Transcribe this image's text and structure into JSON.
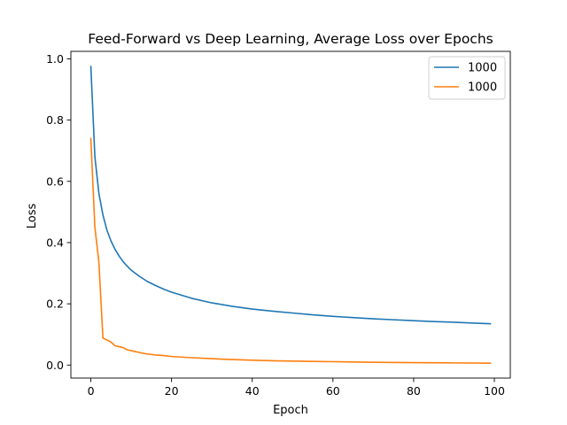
{
  "chart_data": {
    "type": "line",
    "title": "Feed-Forward vs Deep Learning, Average Loss over Epochs",
    "xlabel": "Epoch",
    "ylabel": "Loss",
    "xlim": [
      -4.95,
      103.95
    ],
    "ylim": [
      -0.0425,
      1.0245
    ],
    "xticks": [
      0,
      20,
      40,
      60,
      80,
      100
    ],
    "yticks": [
      0.0,
      0.2,
      0.4,
      0.6,
      0.8,
      1.0
    ],
    "xtick_labels": [
      "0",
      "20",
      "40",
      "60",
      "80",
      "100"
    ],
    "ytick_labels": [
      "0.0",
      "0.2",
      "0.4",
      "0.6",
      "0.8",
      "1.0"
    ],
    "grid": false,
    "legend": "top-right",
    "series": [
      {
        "name": "1000",
        "color": "#1f77b4",
        "x": [
          0,
          1,
          2,
          3,
          4,
          5,
          6,
          7,
          8,
          9,
          10,
          12,
          14,
          16,
          18,
          20,
          25,
          30,
          35,
          40,
          45,
          50,
          55,
          60,
          65,
          70,
          75,
          80,
          85,
          90,
          95,
          99
        ],
        "y": [
          0.975,
          0.68,
          0.56,
          0.49,
          0.44,
          0.405,
          0.378,
          0.356,
          0.338,
          0.323,
          0.31,
          0.29,
          0.273,
          0.26,
          0.248,
          0.238,
          0.218,
          0.203,
          0.192,
          0.183,
          0.176,
          0.17,
          0.164,
          0.159,
          0.155,
          0.151,
          0.148,
          0.145,
          0.142,
          0.14,
          0.137,
          0.135
        ]
      },
      {
        "name": "1000",
        "color": "#ff7f0e",
        "x": [
          0,
          1,
          2,
          3,
          4,
          5,
          6,
          7,
          8,
          9,
          10,
          11,
          12,
          14,
          16,
          18,
          20,
          25,
          30,
          35,
          40,
          45,
          50,
          55,
          60,
          70,
          80,
          90,
          99
        ],
        "y": [
          0.74,
          0.45,
          0.335,
          0.088,
          0.082,
          0.075,
          0.063,
          0.06,
          0.057,
          0.05,
          0.047,
          0.044,
          0.041,
          0.036,
          0.033,
          0.031,
          0.028,
          0.024,
          0.021,
          0.018,
          0.016,
          0.014,
          0.013,
          0.012,
          0.011,
          0.009,
          0.008,
          0.007,
          0.006
        ]
      }
    ]
  }
}
